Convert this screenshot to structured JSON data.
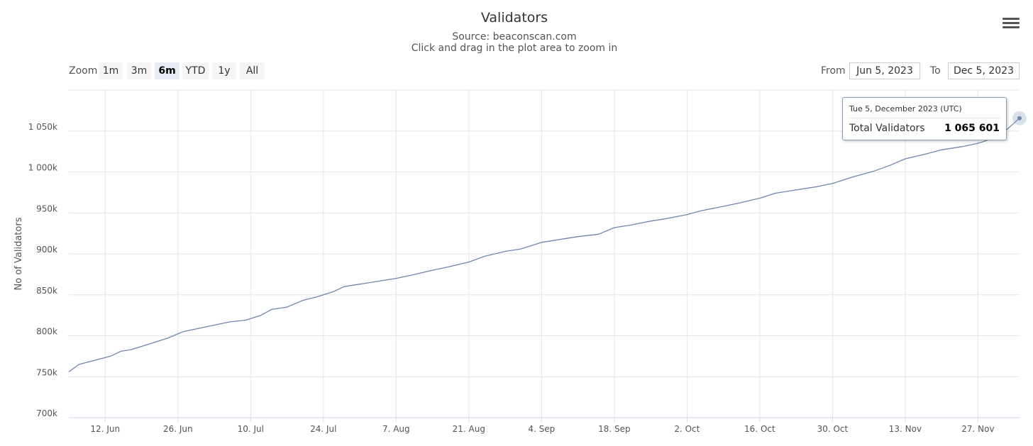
{
  "header": {
    "title": "Validators",
    "subtitle_source": "Source: beaconscan.com",
    "subtitle_hint": "Click and drag in the plot area to zoom in"
  },
  "toolbar": {
    "zoom_label": "Zoom",
    "zoom_buttons": [
      "1m",
      "3m",
      "6m",
      "YTD",
      "1y",
      "All"
    ],
    "active_zoom": "6m",
    "from_label": "From",
    "from_value": "Jun 5, 2023",
    "to_label": "To",
    "to_value": "Dec 5, 2023",
    "menu_icon": "hamburger-menu-icon"
  },
  "tooltip": {
    "date": "Tue 5, December 2023 (UTC)",
    "series": "Total Validators",
    "value": "1 065 601"
  },
  "colors": {
    "line": "#6f86ad",
    "grid": "#e6e6e6",
    "text": "#555555",
    "active_button": "#e6ebf5"
  },
  "chart_data": {
    "type": "line",
    "title": "Validators",
    "subtitle": "Source: beaconscan.com",
    "ylabel": "No of Validators",
    "xlabel": "",
    "xlim": [
      "2023-06-05",
      "2023-12-05"
    ],
    "ylim": [
      700000,
      1100000
    ],
    "y_ticks": [
      700000,
      750000,
      800000,
      850000,
      900000,
      950000,
      1000000,
      1050000
    ],
    "y_tick_labels": [
      "700k",
      "750k",
      "800k",
      "850k",
      "900k",
      "950k",
      "1 000k",
      "1 050k"
    ],
    "x_ticks": [
      "2023-06-12",
      "2023-06-26",
      "2023-07-10",
      "2023-07-24",
      "2023-08-07",
      "2023-08-21",
      "2023-09-04",
      "2023-09-18",
      "2023-10-02",
      "2023-10-16",
      "2023-10-30",
      "2023-11-13",
      "2023-11-27"
    ],
    "x_tick_labels": [
      "12. Jun",
      "26. Jun",
      "10. Jul",
      "24. Jul",
      "7. Aug",
      "21. Aug",
      "4. Sep",
      "18. Sep",
      "2. Oct",
      "16. Oct",
      "30. Oct",
      "13. Nov",
      "27. Nov"
    ],
    "grid": true,
    "legend": "none",
    "series": [
      {
        "x": [
          "2023-06-05",
          "2023-06-07",
          "2023-06-10",
          "2023-06-13",
          "2023-06-15",
          "2023-06-17",
          "2023-06-20",
          "2023-06-24",
          "2023-06-27",
          "2023-06-30",
          "2023-07-03",
          "2023-07-06",
          "2023-07-09",
          "2023-07-12",
          "2023-07-14",
          "2023-07-17",
          "2023-07-20",
          "2023-07-23",
          "2023-07-26",
          "2023-07-28",
          "2023-08-01",
          "2023-08-04",
          "2023-08-07",
          "2023-08-10",
          "2023-08-14",
          "2023-08-17",
          "2023-08-21",
          "2023-08-24",
          "2023-08-28",
          "2023-08-31",
          "2023-09-04",
          "2023-09-08",
          "2023-09-11",
          "2023-09-15",
          "2023-09-18",
          "2023-09-21",
          "2023-09-25",
          "2023-09-28",
          "2023-10-02",
          "2023-10-05",
          "2023-10-09",
          "2023-10-12",
          "2023-10-16",
          "2023-10-19",
          "2023-10-23",
          "2023-10-27",
          "2023-10-30",
          "2023-11-03",
          "2023-11-07",
          "2023-11-10",
          "2023-11-13",
          "2023-11-17",
          "2023-11-20",
          "2023-11-24",
          "2023-11-27",
          "2023-12-01",
          "2023-12-05"
        ],
        "y": [
          756000,
          765000,
          770000,
          775000,
          781000,
          783000,
          789000,
          797000,
          805000,
          809000,
          813000,
          817000,
          819000,
          825000,
          832000,
          835000,
          843000,
          848000,
          854000,
          860000,
          864000,
          867000,
          870000,
          874000,
          880000,
          884000,
          890000,
          897000,
          903000,
          906000,
          914000,
          918000,
          921000,
          924000,
          932000,
          935000,
          940000,
          943000,
          948000,
          953000,
          958000,
          962000,
          968000,
          974000,
          978000,
          982000,
          986000,
          994000,
          1001000,
          1008000,
          1016000,
          1022000,
          1027000,
          1031000,
          1035000,
          1043000,
          1065601
        ]
      }
    ]
  }
}
